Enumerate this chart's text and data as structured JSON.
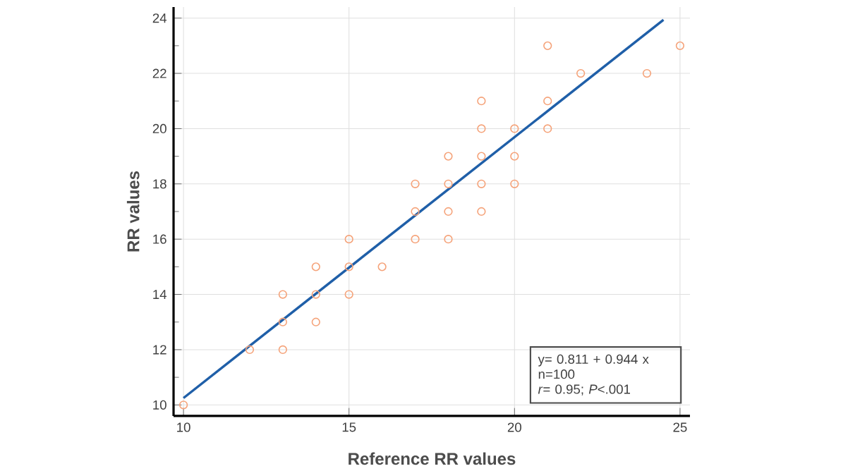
{
  "chart_data": {
    "type": "scatter",
    "xlabel": "Reference RR values",
    "ylabel": "RR values",
    "xlim": [
      9.7,
      25.3
    ],
    "ylim": [
      9.6,
      24.4
    ],
    "xticks": [
      10,
      15,
      20,
      25
    ],
    "yticks": [
      10,
      12,
      14,
      16,
      18,
      20,
      22,
      24
    ],
    "grid": true,
    "marker": "circle",
    "series": [
      {
        "color": "#f5a37a",
        "x": [
          10,
          12,
          13,
          13,
          13,
          14,
          14,
          14,
          15,
          15,
          15,
          16,
          17,
          17,
          17,
          18,
          18,
          18,
          18,
          19,
          19,
          19,
          19,
          19,
          20,
          20,
          20,
          21,
          21,
          21,
          22,
          24,
          25
        ],
        "values": [
          10,
          12,
          12,
          13,
          14,
          13,
          14,
          15,
          14,
          15,
          16,
          15,
          16,
          17,
          18,
          16,
          17,
          18,
          19,
          17,
          18,
          19,
          20,
          21,
          18,
          19,
          20,
          20,
          21,
          23,
          22,
          22,
          23
        ]
      },
      {
        "type": "line",
        "marker": "none",
        "color": "#1f5fa8",
        "x": [
          10,
          24.5
        ],
        "values": [
          10.25,
          23.94
        ]
      }
    ],
    "annotations": [
      "y= 0.811 + 0.944 x",
      "n=100",
      "*r*= 0.95; *P*<.001"
    ]
  }
}
